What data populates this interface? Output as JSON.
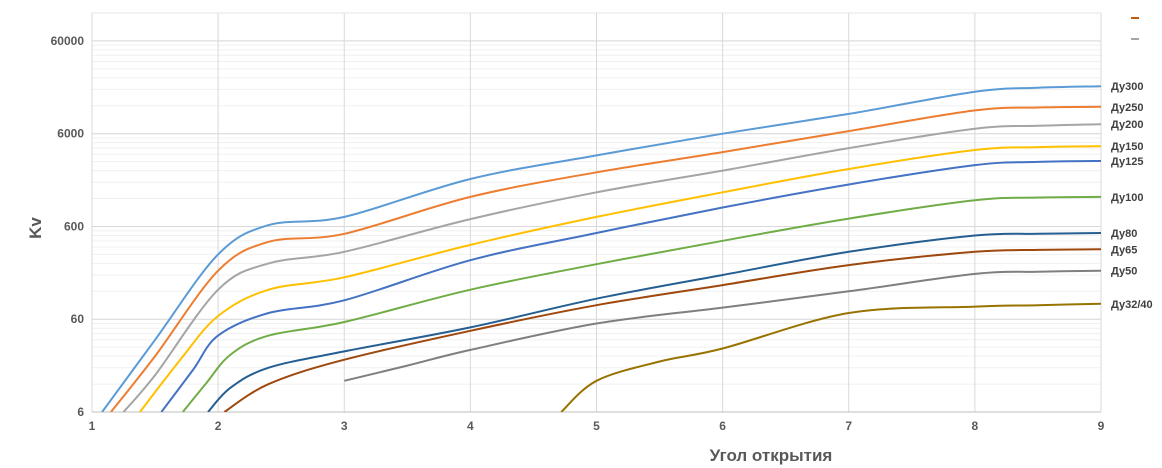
{
  "chart_data": {
    "type": "line",
    "xlabel": "Угол открытия",
    "ylabel": "Kv",
    "scale": {
      "y": "log"
    },
    "xlim": [
      1,
      9
    ],
    "ylim": [
      6,
      120000
    ],
    "x_ticks": [
      "1",
      "2",
      "3",
      "4",
      "5",
      "6",
      "7",
      "8",
      "9"
    ],
    "y_ticks": [
      {
        "value": 6,
        "label": "6"
      },
      {
        "value": 60,
        "label": "60"
      },
      {
        "value": 600,
        "label": "600"
      },
      {
        "value": 6000,
        "label": "6000"
      },
      {
        "value": 60000,
        "label": "60000"
      }
    ],
    "grid": true,
    "legend": {
      "position": "top-right",
      "colors": [
        "#c55a11",
        "#a5a5a5"
      ]
    },
    "series": [
      {
        "name": "Ду300",
        "color": "#5b9bd5",
        "x": [
          1.08,
          1.5,
          2.0,
          2.4,
          3.0,
          4.0,
          5.0,
          6.0,
          7.0,
          8.0,
          8.5,
          9.0
        ],
        "y": [
          6,
          36,
          300,
          620,
          760,
          1950,
          3500,
          6000,
          9800,
          17000,
          18800,
          19500
        ]
      },
      {
        "name": "Ду250",
        "color": "#ed7d31",
        "x": [
          1.15,
          1.5,
          2.0,
          2.4,
          3.0,
          4.0,
          5.0,
          6.0,
          7.0,
          8.0,
          8.5,
          9.0
        ],
        "y": [
          6,
          24,
          200,
          410,
          500,
          1250,
          2300,
          3800,
          6400,
          10700,
          11500,
          11700
        ]
      },
      {
        "name": "Ду200",
        "color": "#a5a5a5",
        "x": [
          1.25,
          1.5,
          2.0,
          2.4,
          3.0,
          4.0,
          5.0,
          6.0,
          7.0,
          8.0,
          8.5,
          9.0
        ],
        "y": [
          6,
          15,
          125,
          240,
          320,
          720,
          1400,
          2400,
          4200,
          6800,
          7300,
          7600
        ]
      },
      {
        "name": "Ду150",
        "color": "#ffc000",
        "x": [
          1.38,
          1.7,
          2.0,
          2.4,
          3.0,
          4.0,
          5.0,
          6.0,
          7.0,
          8.0,
          8.5,
          9.0
        ],
        "y": [
          6,
          22,
          65,
          125,
          170,
          380,
          760,
          1400,
          2500,
          4000,
          4300,
          4400
        ]
      },
      {
        "name": "Ду125",
        "color": "#4472c4",
        "x": [
          1.55,
          1.8,
          2.0,
          2.4,
          3.0,
          4.0,
          5.0,
          6.0,
          7.0,
          8.0,
          8.5,
          9.0
        ],
        "y": [
          6,
          17,
          40,
          70,
          96,
          260,
          510,
          960,
          1700,
          2750,
          2980,
          3050
        ]
      },
      {
        "name": "Ду100",
        "color": "#70ad47",
        "x": [
          1.72,
          1.9,
          2.1,
          2.4,
          3.0,
          4.0,
          5.0,
          6.0,
          7.0,
          8.0,
          8.5,
          9.0
        ],
        "y": [
          6,
          12,
          25,
          40,
          56,
          125,
          235,
          420,
          730,
          1150,
          1230,
          1250
        ]
      },
      {
        "name": "Ду80",
        "color": "#255e91",
        "x": [
          1.92,
          2.1,
          2.4,
          3.0,
          4.0,
          5.0,
          6.0,
          7.0,
          8.0,
          8.5,
          9.0
        ],
        "y": [
          6,
          11,
          18,
          27,
          49,
          100,
          180,
          320,
          480,
          500,
          510
        ]
      },
      {
        "name": "Ду65",
        "color": "#9e480e",
        "x": [
          2.05,
          2.4,
          3.0,
          4.0,
          5.0,
          6.0,
          7.0,
          8.0,
          8.5,
          9.0
        ],
        "y": [
          6,
          12,
          22,
          45,
          85,
          140,
          230,
          320,
          335,
          340
        ]
      },
      {
        "name": "Ду50",
        "color": "#7f7f7f",
        "x": [
          3.0,
          3.5,
          4.0,
          5.0,
          6.0,
          7.0,
          8.0,
          8.5,
          9.0
        ],
        "y": [
          13,
          19,
          28,
          54,
          80,
          120,
          185,
          195,
          200
        ]
      },
      {
        "name": "Ду32/40",
        "color": "#997300",
        "x": [
          4.72,
          5.0,
          5.5,
          6.0,
          7.0,
          8.0,
          8.5,
          9.0
        ],
        "y": [
          6,
          13,
          21,
          29,
          70,
          82,
          85,
          88
        ]
      }
    ]
  }
}
